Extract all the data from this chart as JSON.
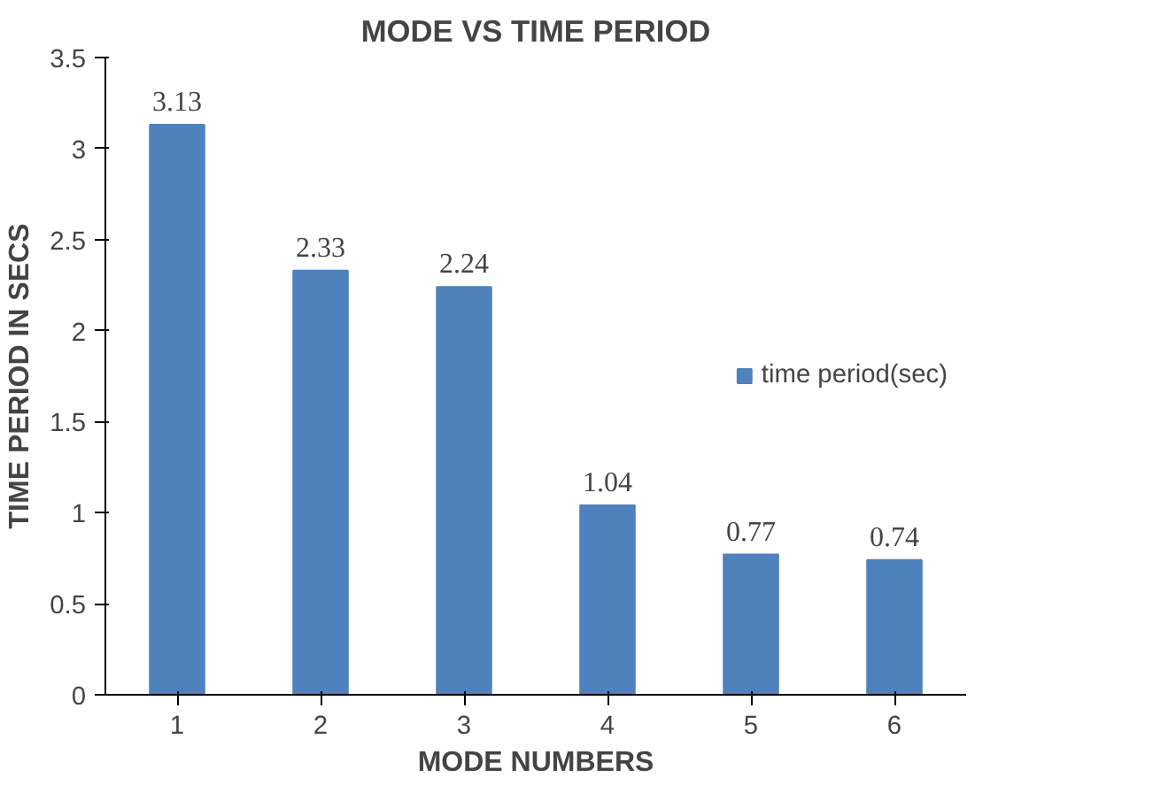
{
  "chart_data": {
    "type": "bar",
    "title": "MODE VS TIME PERIOD",
    "xlabel": "MODE NUMBERS",
    "ylabel": "TIME PERIOD IN SECS",
    "categories": [
      "1",
      "2",
      "3",
      "4",
      "5",
      "6"
    ],
    "series": [
      {
        "name": "time period(sec)",
        "color": "#4f81bd",
        "values": [
          3.13,
          2.33,
          2.24,
          1.04,
          0.77,
          0.74
        ]
      }
    ],
    "ylim": [
      0,
      3.5
    ],
    "yticks": [
      0,
      0.5,
      1,
      1.5,
      2,
      2.5,
      3,
      3.5
    ],
    "grid": false,
    "legend": "right",
    "data_labels": true
  }
}
